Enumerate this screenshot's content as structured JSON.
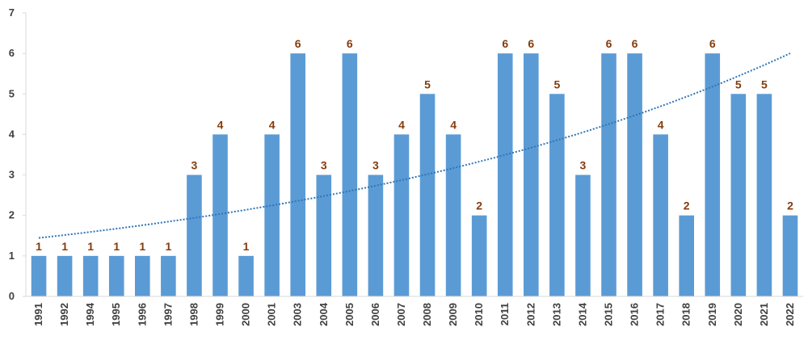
{
  "chart_data": {
    "type": "bar",
    "categories": [
      "1991",
      "1992",
      "1994",
      "1995",
      "1996",
      "1997",
      "1998",
      "1999",
      "2000",
      "2001",
      "2003",
      "2004",
      "2005",
      "2006",
      "2007",
      "2008",
      "2009",
      "2010",
      "2011",
      "2012",
      "2013",
      "2014",
      "2015",
      "2016",
      "2017",
      "2018",
      "2019",
      "2020",
      "2021",
      "2022"
    ],
    "series": [
      {
        "values": [
          1,
          1,
          1,
          1,
          1,
          1,
          3,
          4,
          1,
          4,
          6,
          3,
          6,
          3,
          4,
          5,
          4,
          2,
          6,
          6,
          5,
          3,
          6,
          6,
          4,
          2,
          6,
          5,
          5,
          2
        ]
      }
    ],
    "title": "",
    "xlabel": "",
    "ylabel": "",
    "ylim": [
      0,
      7
    ],
    "yticks": [
      0,
      1,
      2,
      3,
      4,
      5,
      6,
      7
    ],
    "grid": false,
    "legend": "none",
    "data_labels": true,
    "trendline": {
      "type": "exponential",
      "style": "dotted"
    },
    "colors": {
      "bar": "#5b9bd5",
      "label": "#843c0c",
      "trend": "#2e75b6",
      "axis": "#d9d9d9",
      "tick_text": "#404040"
    }
  }
}
